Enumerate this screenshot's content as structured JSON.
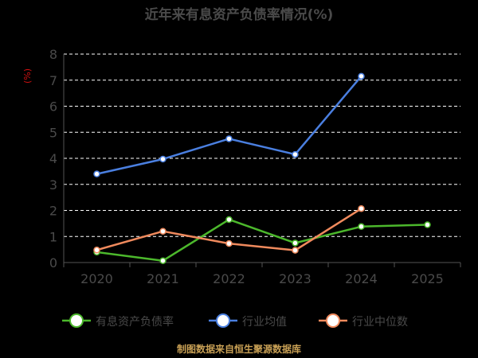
{
  "chart_data": {
    "type": "line",
    "title": "近年来有息资产负债率情况(%)",
    "unit_label": "(%)",
    "x": [
      "2020",
      "2021",
      "2022",
      "2023",
      "2024",
      "2025"
    ],
    "ylim": [
      0,
      8
    ],
    "yticks": [
      0,
      1,
      2,
      3,
      4,
      5,
      6,
      7,
      8
    ],
    "grid": true,
    "legend_position": "bottom",
    "series": [
      {
        "name": "有息资产负债率",
        "color": "#4cb82c",
        "values": [
          0.4,
          0.07,
          1.65,
          0.75,
          1.38,
          1.45
        ]
      },
      {
        "name": "行业均值",
        "color": "#4a7fe0",
        "values": [
          3.4,
          3.97,
          4.75,
          4.15,
          7.15,
          null
        ]
      },
      {
        "name": "行业中位数",
        "color": "#f08a5d",
        "values": [
          0.48,
          1.2,
          0.73,
          0.47,
          2.07,
          null
        ]
      }
    ]
  },
  "source": "制图数据来自恒生聚源数据库"
}
